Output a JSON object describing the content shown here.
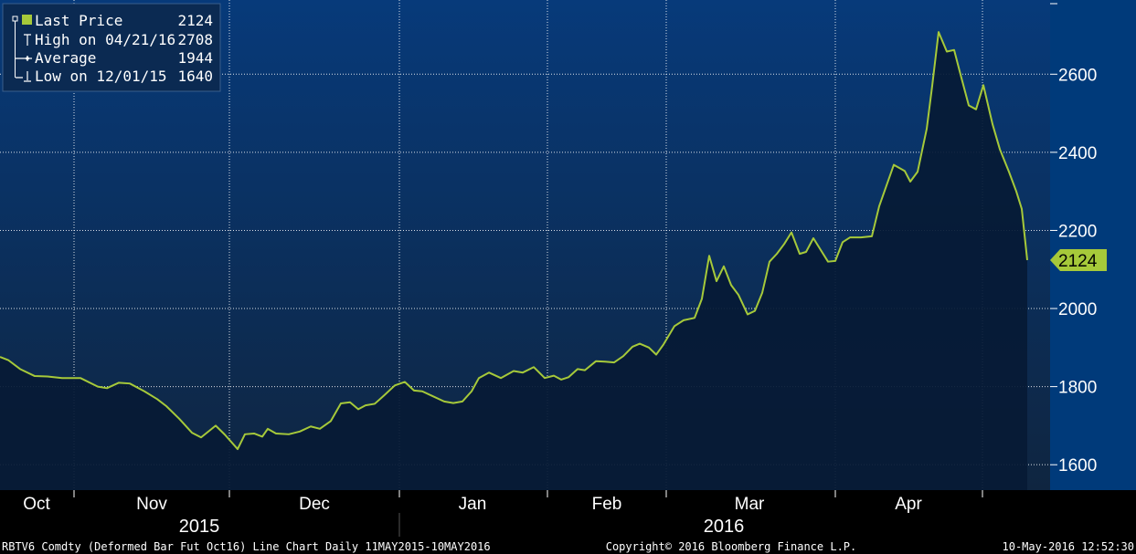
{
  "colors": {
    "plot_top": "#073a7a",
    "plot_bottom": "#0f2540",
    "area_fill": "#061a35",
    "line": "#a6c93a",
    "grid": "#ffffff",
    "axis_bg": "#000000",
    "text": "#ffffff"
  },
  "legend": {
    "items": [
      {
        "label": "Last Price",
        "value": "2124",
        "icon": "green-square-icon"
      },
      {
        "label": "High on 04/21/16",
        "value": "2708",
        "icon": "high-marker-icon"
      },
      {
        "label": "Average",
        "value": "1944",
        "icon": "average-marker-icon"
      },
      {
        "label": "Low on 12/01/15",
        "value": "1640",
        "icon": "low-marker-icon"
      }
    ]
  },
  "last_price_tag": "2124",
  "footer": {
    "left": "RBTV6 Comdty (Deformed Bar Fut  Oct16) Line Chart  Daily 11MAY2015-10MAY2016",
    "center": "Copyright© 2016 Bloomberg Finance L.P.",
    "right": "10-May-2016 12:52:30"
  },
  "chart_data": {
    "type": "area",
    "title": "",
    "xlabel": "",
    "ylabel": "",
    "ylim": [
      1535,
      2790
    ],
    "yticks": [
      1600,
      1800,
      2000,
      2200,
      2400,
      2600
    ],
    "grid": true,
    "legend_position": "top-left",
    "x_months": [
      {
        "label": "Oct"
      },
      {
        "label": "Nov"
      },
      {
        "label": "Dec"
      },
      {
        "label": "Jan"
      },
      {
        "label": "Feb"
      },
      {
        "label": "Mar"
      },
      {
        "label": "Apr"
      }
    ],
    "x_years": [
      "2015",
      "2016"
    ],
    "series": [
      {
        "values": [
          [
            0,
            1876
          ],
          [
            9,
            1868
          ],
          [
            22,
            1845
          ],
          [
            38,
            1827
          ],
          [
            52,
            1826
          ],
          [
            68,
            1822
          ],
          [
            88,
            1822
          ],
          [
            107,
            1800
          ],
          [
            117,
            1796
          ],
          [
            130,
            1810
          ],
          [
            142,
            1808
          ],
          [
            158,
            1788
          ],
          [
            172,
            1768
          ],
          [
            182,
            1750
          ],
          [
            196,
            1718
          ],
          [
            210,
            1682
          ],
          [
            220,
            1670
          ],
          [
            236,
            1700
          ],
          [
            246,
            1677
          ],
          [
            260,
            1640
          ],
          [
            268,
            1678
          ],
          [
            278,
            1680
          ],
          [
            287,
            1672
          ],
          [
            293,
            1692
          ],
          [
            302,
            1680
          ],
          [
            316,
            1678
          ],
          [
            328,
            1685
          ],
          [
            340,
            1698
          ],
          [
            350,
            1692
          ],
          [
            362,
            1712
          ],
          [
            373,
            1757
          ],
          [
            383,
            1760
          ],
          [
            392,
            1742
          ],
          [
            400,
            1752
          ],
          [
            410,
            1756
          ],
          [
            420,
            1777
          ],
          [
            432,
            1803
          ],
          [
            443,
            1812
          ],
          [
            453,
            1790
          ],
          [
            462,
            1788
          ],
          [
            474,
            1775
          ],
          [
            486,
            1762
          ],
          [
            496,
            1758
          ],
          [
            506,
            1762
          ],
          [
            516,
            1788
          ],
          [
            524,
            1822
          ],
          [
            535,
            1836
          ],
          [
            548,
            1822
          ],
          [
            562,
            1840
          ],
          [
            572,
            1836
          ],
          [
            584,
            1850
          ],
          [
            596,
            1822
          ],
          [
            606,
            1828
          ],
          [
            614,
            1818
          ],
          [
            622,
            1824
          ],
          [
            632,
            1845
          ],
          [
            640,
            1842
          ],
          [
            652,
            1865
          ],
          [
            662,
            1864
          ],
          [
            672,
            1862
          ],
          [
            682,
            1878
          ],
          [
            692,
            1902
          ],
          [
            700,
            1910
          ],
          [
            710,
            1900
          ],
          [
            718,
            1882
          ],
          [
            726,
            1908
          ],
          [
            738,
            1955
          ],
          [
            748,
            1970
          ],
          [
            760,
            1976
          ],
          [
            768,
            2025
          ],
          [
            776,
            2135
          ],
          [
            784,
            2070
          ],
          [
            792,
            2108
          ],
          [
            800,
            2060
          ],
          [
            808,
            2035
          ],
          [
            818,
            1985
          ],
          [
            826,
            1994
          ],
          [
            834,
            2040
          ],
          [
            842,
            2120
          ],
          [
            850,
            2140
          ],
          [
            858,
            2165
          ],
          [
            866,
            2195
          ],
          [
            875,
            2140
          ],
          [
            882,
            2145
          ],
          [
            890,
            2180
          ],
          [
            898,
            2150
          ],
          [
            906,
            2120
          ],
          [
            914,
            2122
          ],
          [
            922,
            2170
          ],
          [
            930,
            2182
          ],
          [
            942,
            2182
          ],
          [
            954,
            2185
          ],
          [
            962,
            2262
          ],
          [
            978,
            2368
          ],
          [
            990,
            2352
          ],
          [
            996,
            2325
          ],
          [
            1004,
            2350
          ],
          [
            1014,
            2460
          ],
          [
            1020,
            2570
          ],
          [
            1027,
            2708
          ],
          [
            1036,
            2658
          ],
          [
            1044,
            2662
          ],
          [
            1050,
            2608
          ],
          [
            1060,
            2520
          ],
          [
            1068,
            2510
          ],
          [
            1076,
            2572
          ],
          [
            1086,
            2472
          ],
          [
            1094,
            2408
          ],
          [
            1104,
            2350
          ],
          [
            1112,
            2300
          ],
          [
            1118,
            2255
          ],
          [
            1124,
            2124
          ]
        ]
      }
    ]
  }
}
